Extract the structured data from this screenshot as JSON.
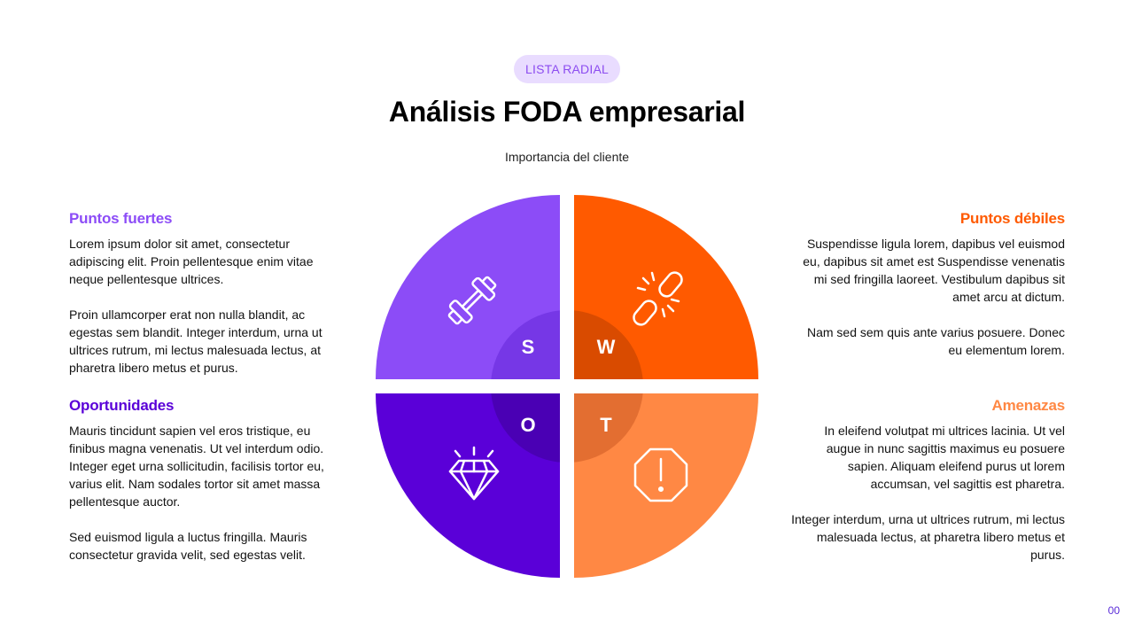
{
  "header": {
    "badge": "LISTA RADIAL",
    "title": "Análisis FODA empresarial",
    "subtitle": "Importancia del cliente"
  },
  "colors": {
    "badge_bg": "#e9dcff",
    "badge_text": "#8c4cf0",
    "strengths": "#8c4cf7",
    "weaknesses": "#ff5a00",
    "opportunities": "#5a00d8",
    "threats": "#ff8844"
  },
  "quadrants": {
    "strengths": {
      "letter": "S",
      "icon": "dumbbell-icon"
    },
    "weaknesses": {
      "letter": "W",
      "icon": "broken-link-icon"
    },
    "opportunities": {
      "letter": "O",
      "icon": "diamond-icon"
    },
    "threats": {
      "letter": "T",
      "icon": "warning-octagon-icon"
    }
  },
  "sections": {
    "strengths": {
      "title": "Puntos fuertes",
      "p1": "Lorem ipsum dolor sit amet, consectetur adipiscing elit. Proin pellentesque enim vitae neque pellentesque ultrices.",
      "p2": "Proin ullamcorper erat non nulla blandit, ac egestas sem blandit. Integer interdum, urna ut ultrices rutrum, mi lectus malesuada lectus, at pharetra libero metus et purus."
    },
    "weaknesses": {
      "title": "Puntos débiles",
      "p1": "Suspendisse ligula lorem, dapibus vel euismod eu, dapibus sit amet est Suspendisse venenatis mi sed fringilla laoreet. Vestibulum dapibus sit amet arcu at dictum.",
      "p2": "Nam sed sem quis ante varius posuere. Donec eu elementum lorem."
    },
    "opportunities": {
      "title": "Oportunidades",
      "p1": "Mauris tincidunt sapien vel eros tristique, eu finibus magna venenatis. Ut vel interdum odio. Integer eget urna sollicitudin, facilisis tortor eu, varius elit. Nam sodales tortor sit amet massa pellentesque auctor.",
      "p2": "Sed euismod ligula a luctus fringilla. Mauris consectetur gravida velit, sed egestas velit."
    },
    "threats": {
      "title": "Amenazas",
      "p1": "In eleifend volutpat mi ultrices lacinia. Ut vel augue in nunc sagittis maximus eu posuere sapien. Aliquam eleifend purus ut lorem accumsan, vel sagittis est pharetra.",
      "p2": "Integer interdum, urna ut ultrices rutrum, mi lectus malesuada lectus, at pharetra libero metus et purus."
    }
  },
  "footer": {
    "page_number": "00"
  }
}
